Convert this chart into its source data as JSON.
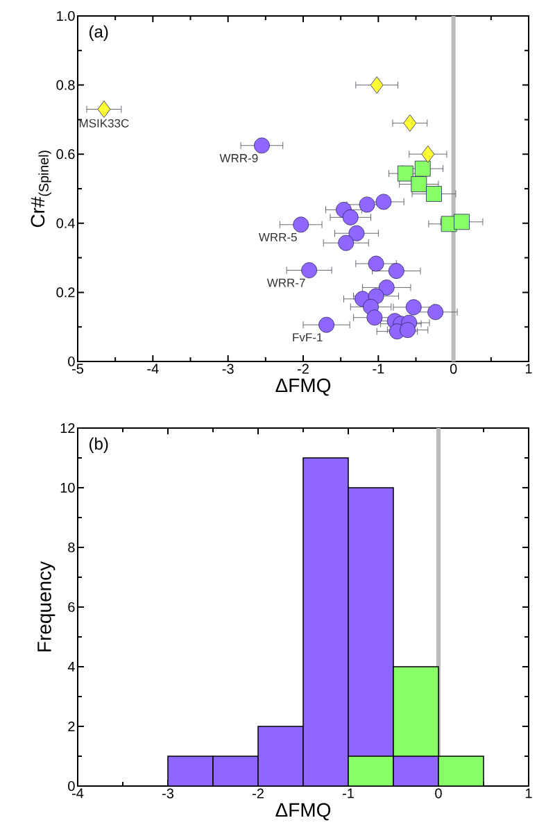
{
  "chart_data": [
    {
      "type": "scatter",
      "title": "(a)",
      "xlabel": "ΔFMQ",
      "ylabel": "Cr#$_{(Spinel)}$",
      "xlim": [
        -5,
        1
      ],
      "ylim": [
        0,
        1
      ],
      "xticks": [
        -5,
        -4,
        -3,
        -2,
        -1,
        0,
        1
      ],
      "yticks": [
        0,
        0.2,
        0.4,
        0.6,
        0.8,
        {
          "value": 1,
          "label": "1.0"
        }
      ],
      "series": [
        {
          "color": "#8f66ff",
          "marker": "circle",
          "x": [
            -2.55,
            -0.93,
            -1.15,
            -1.46,
            -1.37,
            -2.03,
            -1.29,
            -1.43,
            -1.92,
            -1.03,
            -0.76,
            -0.89,
            -1.21,
            -1.03,
            -1.1,
            -0.53,
            -0.24,
            -1.05,
            -1.69,
            -0.78,
            -0.7,
            -0.59,
            -0.75,
            -0.61
          ],
          "values": [
            0.625,
            0.462,
            0.454,
            0.439,
            0.417,
            0.396,
            0.371,
            0.343,
            0.264,
            0.283,
            0.262,
            0.214,
            0.181,
            0.189,
            0.158,
            0.157,
            0.143,
            0.127,
            0.106,
            0.117,
            0.109,
            0.112,
            0.087,
            0.091
          ],
          "xerrors": [
            0.28,
            0.27,
            0.27,
            0.24,
            0.27,
            0.28,
            0.29,
            0.3,
            0.3,
            0.27,
            0.32,
            0.32,
            0.25,
            0.3,
            0.27,
            0.27,
            0.29,
            0.28,
            0.31,
            0.27,
            0.27,
            0.27,
            0.27,
            0.27
          ]
        },
        {
          "color": "#88ff66",
          "marker": "square",
          "x": [
            -0.64,
            -0.41,
            -0.46,
            -0.26,
            -0.06,
            0.11
          ],
          "values": [
            0.544,
            0.558,
            0.513,
            0.485,
            0.398,
            0.404
          ],
          "xerrors": [
            0.22,
            0.27,
            0.26,
            0.29,
            0.27,
            0.28
          ]
        },
        {
          "color": "#ffff33",
          "marker": "diamond",
          "x": [
            -4.65,
            -1.02,
            -0.58,
            -0.34
          ],
          "values": [
            0.73,
            0.8,
            0.69,
            0.6
          ],
          "xerrors": [
            0.23,
            0.28,
            0.23,
            0.25
          ]
        }
      ],
      "ref_lines": [
        {
          "axis": "x",
          "value": 0,
          "color": "#bbbbbb"
        }
      ],
      "annotations": [
        {
          "text": "MSIK33C",
          "x": -4.65,
          "y": 0.73
        },
        {
          "text": "WRR-9",
          "x": -2.55,
          "y": 0.625
        },
        {
          "text": "WRR-5",
          "x": -2.03,
          "y": 0.396
        },
        {
          "text": "WRR-7",
          "x": -1.92,
          "y": 0.264
        },
        {
          "text": "FvF-1",
          "x": -1.69,
          "y": 0.106
        }
      ]
    },
    {
      "type": "histogram",
      "title": "(b)",
      "xlabel": "ΔFMQ",
      "ylabel": "Frequency",
      "xlim": [
        -4,
        1
      ],
      "ylim": [
        0,
        12
      ],
      "xticks": [
        -4,
        -3,
        -2,
        -1,
        0,
        1
      ],
      "yticks": [
        0,
        2,
        4,
        6,
        8,
        10,
        12
      ],
      "bins": [
        -3,
        -2.5,
        -2,
        -1.5,
        -1,
        -0.5,
        0,
        0.5
      ],
      "series": [
        {
          "color": "#8f66ff",
          "values": [
            1,
            1,
            2,
            11,
            10,
            1,
            0
          ]
        },
        {
          "color": "#88ff66",
          "values": [
            0,
            0,
            0,
            0,
            1,
            4,
            1
          ]
        }
      ],
      "ref_lines": [
        {
          "axis": "x",
          "value": 0,
          "color": "#bbbbbb"
        }
      ]
    }
  ]
}
